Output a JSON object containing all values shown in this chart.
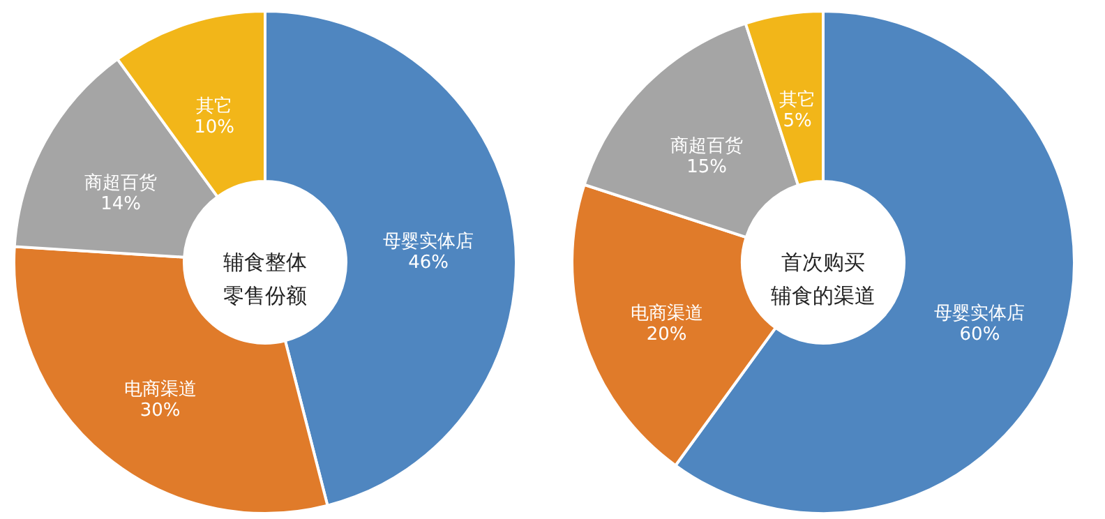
{
  "chart_data": [
    {
      "type": "donut",
      "title": "辅食整体零售份额",
      "categories": [
        "母婴实体店",
        "电商渠道",
        "商超百货",
        "其它"
      ],
      "values": [
        46,
        30,
        14,
        10
      ],
      "colors": [
        "#4f86c0",
        "#e07b2a",
        "#a5a5a5",
        "#f2b619"
      ],
      "value_labels": [
        "46%",
        "30%",
        "14%",
        "10%"
      ],
      "legend": false
    },
    {
      "type": "donut",
      "title": "首次购买辅食的渠道",
      "categories": [
        "母婴实体店",
        "电商渠道",
        "商超百货",
        "其它"
      ],
      "values": [
        60,
        20,
        15,
        5
      ],
      "colors": [
        "#4f86c0",
        "#e07b2a",
        "#a5a5a5",
        "#f2b619"
      ],
      "value_labels": [
        "60%",
        "20%",
        "15%",
        "5%"
      ],
      "legend": false
    }
  ]
}
